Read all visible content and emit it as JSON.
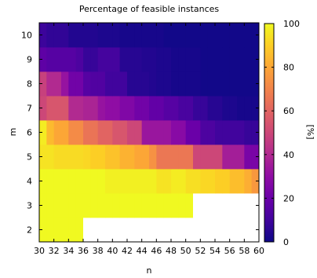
{
  "chart_data": {
    "type": "heatmap",
    "title": "Percentage of feasible instances",
    "xlabel": "n",
    "ylabel": "m",
    "colorbar_label": "[%]",
    "colormap": "plasma",
    "x": [
      30,
      31,
      32,
      33,
      34,
      35,
      36,
      37,
      38,
      39,
      40,
      41,
      42,
      43,
      44,
      45,
      46,
      47,
      48,
      49,
      50,
      51,
      52,
      53,
      54,
      55,
      56,
      57,
      58,
      59
    ],
    "y": [
      2,
      3,
      4,
      5,
      6,
      7,
      8,
      9,
      10
    ],
    "xticks": [
      30,
      32,
      34,
      36,
      38,
      40,
      42,
      44,
      46,
      48,
      50,
      52,
      54,
      56,
      58,
      60
    ],
    "yticks": [
      2,
      3,
      4,
      5,
      6,
      7,
      8,
      9,
      10
    ],
    "colorbar_ticks": [
      0,
      20,
      40,
      60,
      80,
      100
    ],
    "vlim": [
      0,
      100
    ],
    "missing_value_color": "#ffffff",
    "values": [
      [
        100,
        100,
        100,
        100,
        100,
        100,
        null,
        null,
        null,
        null,
        null,
        null,
        null,
        null,
        null,
        null,
        null,
        null,
        null,
        null,
        null,
        null,
        null,
        null,
        null,
        null,
        null,
        null,
        null,
        null
      ],
      [
        100,
        100,
        100,
        100,
        100,
        100,
        100,
        100,
        100,
        100,
        100,
        100,
        100,
        100,
        100,
        100,
        100,
        100,
        100,
        100,
        100,
        null,
        null,
        null,
        null,
        null,
        null,
        null,
        null,
        null
      ],
      [
        100,
        100,
        100,
        100,
        100,
        100,
        100,
        100,
        100,
        98,
        98,
        98,
        98,
        98,
        98,
        98,
        95,
        95,
        97,
        97,
        94,
        94,
        92,
        92,
        90,
        90,
        86,
        86,
        82,
        76
      ],
      [
        95,
        95,
        93,
        93,
        93,
        93,
        92,
        90,
        90,
        87,
        87,
        83,
        83,
        80,
        80,
        74,
        66,
        66,
        66,
        66,
        66,
        50,
        50,
        50,
        50,
        36,
        36,
        36,
        24,
        24
      ],
      [
        97,
        85,
        80,
        80,
        72,
        72,
        65,
        65,
        60,
        60,
        55,
        55,
        50,
        50,
        33,
        33,
        33,
        33,
        28,
        28,
        20,
        20,
        13,
        13,
        10,
        10,
        10,
        10,
        8,
        8
      ],
      [
        50,
        55,
        55,
        55,
        40,
        40,
        38,
        38,
        32,
        30,
        30,
        26,
        26,
        22,
        22,
        18,
        18,
        15,
        15,
        12,
        12,
        8,
        8,
        5,
        5,
        3,
        3,
        2,
        2,
        2
      ],
      [
        48,
        40,
        40,
        32,
        22,
        22,
        15,
        14,
        14,
        10,
        10,
        10,
        5,
        5,
        5,
        4,
        3,
        3,
        2,
        2,
        2,
        2,
        1,
        1,
        1,
        1,
        1,
        1,
        1,
        1
      ],
      [
        17,
        15,
        15,
        15,
        15,
        13,
        8,
        8,
        11,
        11,
        11,
        5,
        5,
        5,
        4,
        4,
        3,
        3,
        2,
        2,
        2,
        2,
        1,
        1,
        1,
        1,
        1,
        1,
        1,
        1
      ],
      [
        9,
        7,
        7,
        7,
        4,
        4,
        4,
        4,
        3,
        3,
        3,
        2,
        2,
        2,
        2,
        2,
        2,
        1,
        1,
        1,
        1,
        1,
        1,
        1,
        1,
        1,
        1,
        1,
        1,
        1
      ]
    ]
  }
}
